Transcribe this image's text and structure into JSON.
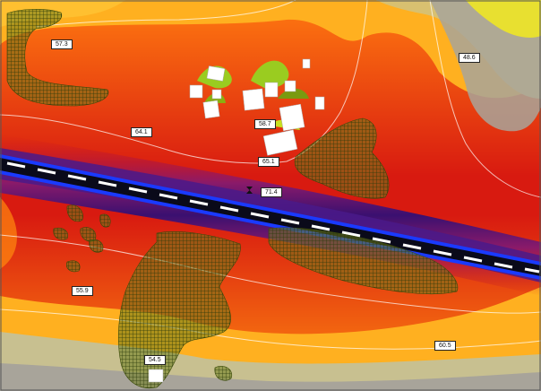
{
  "map": {
    "colors": {
      "very_high": "#1a0033",
      "high": "#6a2a9a",
      "elevated": "#d0101a",
      "moderate": "#ff5a0a",
      "low": "#ffd020",
      "lowest": "#b8b0a0",
      "road_line": "#0033ff",
      "contour": "#ffffff",
      "vegetation": "#5a6a1a"
    },
    "labels": [
      {
        "id": "57-3",
        "text": "57.3"
      },
      {
        "id": "48-6",
        "text": "48.6"
      },
      {
        "id": "58-7",
        "text": "58.7"
      },
      {
        "id": "64-1",
        "text": "64.1"
      },
      {
        "id": "65-1",
        "text": "65.1"
      },
      {
        "id": "71-4",
        "text": "71.4"
      },
      {
        "id": "55-9",
        "text": "55.9"
      },
      {
        "id": "60-5",
        "text": "60.5"
      },
      {
        "id": "54-5",
        "text": "54.5"
      }
    ]
  }
}
